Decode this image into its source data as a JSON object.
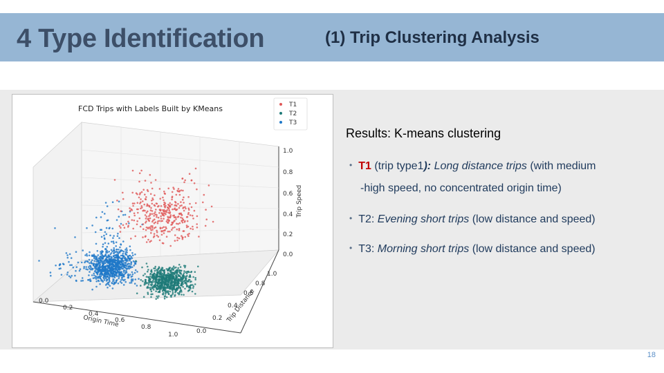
{
  "header": {
    "section_title": "4 Type Identification",
    "slide_title": "(1) Trip Clustering Analysis"
  },
  "figure": {
    "title": "FCD Trips with Labels Built by KMeans",
    "legend": [
      {
        "label": "T1",
        "color": "#e05858"
      },
      {
        "label": "T2",
        "color": "#1e7a78"
      },
      {
        "label": "T3",
        "color": "#1f78c8"
      }
    ],
    "axes": {
      "x_label": "Origin Time",
      "y_label": "Trip Distance",
      "z_label": "Trip Speed",
      "x_ticks": [
        "0.0",
        "0.2",
        "0.4",
        "0.6",
        "0.8",
        "1.0"
      ],
      "y_ticks": [
        "0.0",
        "0.2",
        "0.4",
        "0.6",
        "0.8",
        "1.0"
      ],
      "z_ticks": [
        "0.0",
        "0.2",
        "0.4",
        "0.6",
        "0.8",
        "1.0"
      ]
    }
  },
  "results": {
    "heading": "Results: K-means clustering",
    "bullets": [
      {
        "code": "T1",
        "code_suffix": " (trip type1",
        "dash": "): ",
        "name": "Long distance trips",
        "desc_1": " (with medium",
        "desc_2": "-high speed, no concentrated origin time)"
      },
      {
        "code": "T2",
        "sep": ": ",
        "name": "Evening short trips",
        "desc": " (low distance and speed)"
      },
      {
        "code": "T3",
        "sep": ": ",
        "name": "Morning short trips",
        "desc": " (low distance and speed)"
      }
    ]
  },
  "page_number": "18"
}
